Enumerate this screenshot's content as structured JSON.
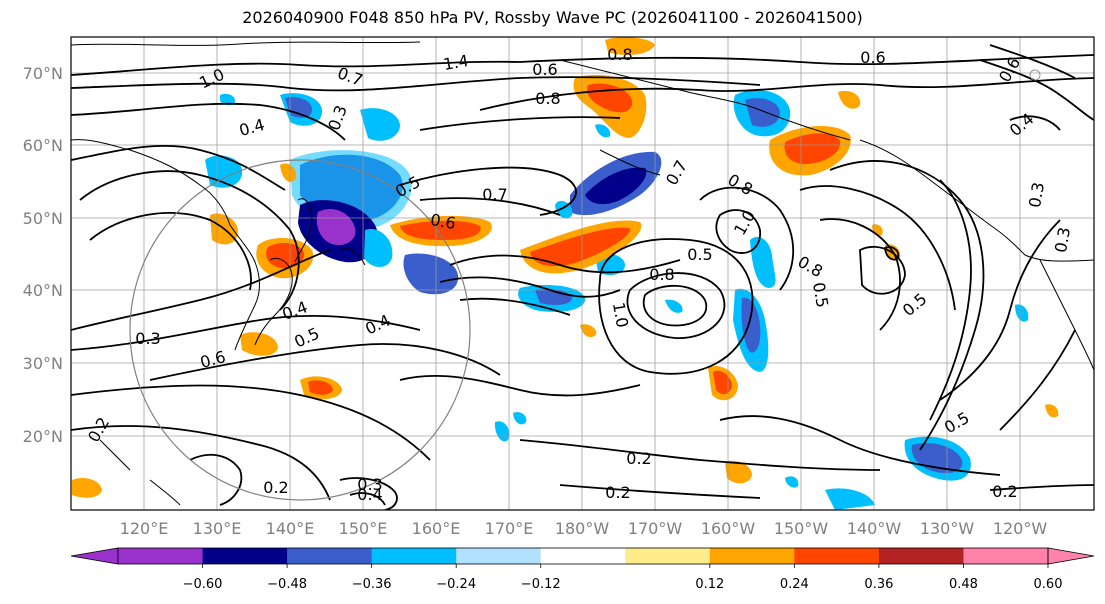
{
  "title": "2026040900 F048 850 hPa PV, Rossby Wave PC (2026041100 - 2026041500)",
  "map": {
    "lat_labels": [
      "70°N",
      "60°N",
      "50°N",
      "40°N",
      "30°N",
      "20°N"
    ],
    "lon_labels": [
      "120°E",
      "130°E",
      "140°E",
      "150°E",
      "160°E",
      "170°E",
      "180°W",
      "170°W",
      "160°W",
      "150°W",
      "140°W",
      "130°W",
      "120°W"
    ],
    "contour_labels": [
      {
        "text": "1.0"
      },
      {
        "text": "0.7"
      },
      {
        "text": "1.4"
      },
      {
        "text": "0.6"
      },
      {
        "text": "0.8"
      },
      {
        "text": "0.6"
      },
      {
        "text": "0.4"
      },
      {
        "text": "0.3"
      },
      {
        "text": "0.5"
      },
      {
        "text": "0.7"
      },
      {
        "text": "0.6"
      },
      {
        "text": "0.7"
      },
      {
        "text": "0.8"
      },
      {
        "text": "1.0"
      },
      {
        "text": "0.5"
      },
      {
        "text": "0.8"
      },
      {
        "text": "0.8"
      },
      {
        "text": "0.5"
      },
      {
        "text": "0.3"
      },
      {
        "text": "0.4"
      },
      {
        "text": "0.5"
      },
      {
        "text": "0.6"
      },
      {
        "text": "0.3"
      },
      {
        "text": "0.2"
      },
      {
        "text": "0.3"
      },
      {
        "text": "0.4"
      },
      {
        "text": "0.2"
      },
      {
        "text": "0.2"
      },
      {
        "text": "0.2"
      },
      {
        "text": "0.5"
      },
      {
        "text": "0.4"
      },
      {
        "text": "0.6"
      },
      {
        "text": "0.3"
      },
      {
        "text": "0.2"
      },
      {
        "text": "0.8"
      },
      {
        "text": "1.0"
      },
      {
        "text": "0.5"
      },
      {
        "text": "0.4"
      }
    ]
  },
  "colorbar": {
    "ticks": [
      "−0.60",
      "−0.48",
      "−0.36",
      "−0.24",
      "−0.12",
      "0.12",
      "0.24",
      "0.36",
      "0.48",
      "0.60"
    ],
    "colors": [
      "#9932cc",
      "#00008b",
      "#3a5fcd",
      "#00bfff",
      "#b0e2ff",
      "#ffffff",
      "#ffec8b",
      "#ffa500",
      "#ff4500",
      "#b22222",
      "#ff82ab"
    ]
  },
  "fill_colors": {
    "neg_deep": "#3a5fcd",
    "neg_mid": "#00bfff",
    "neg_dark": "#00008b",
    "neg_purple": "#9932cc",
    "pos_light": "#ffa500",
    "pos_mid": "#ff4500",
    "pos_yellow": "#ffec8b"
  }
}
